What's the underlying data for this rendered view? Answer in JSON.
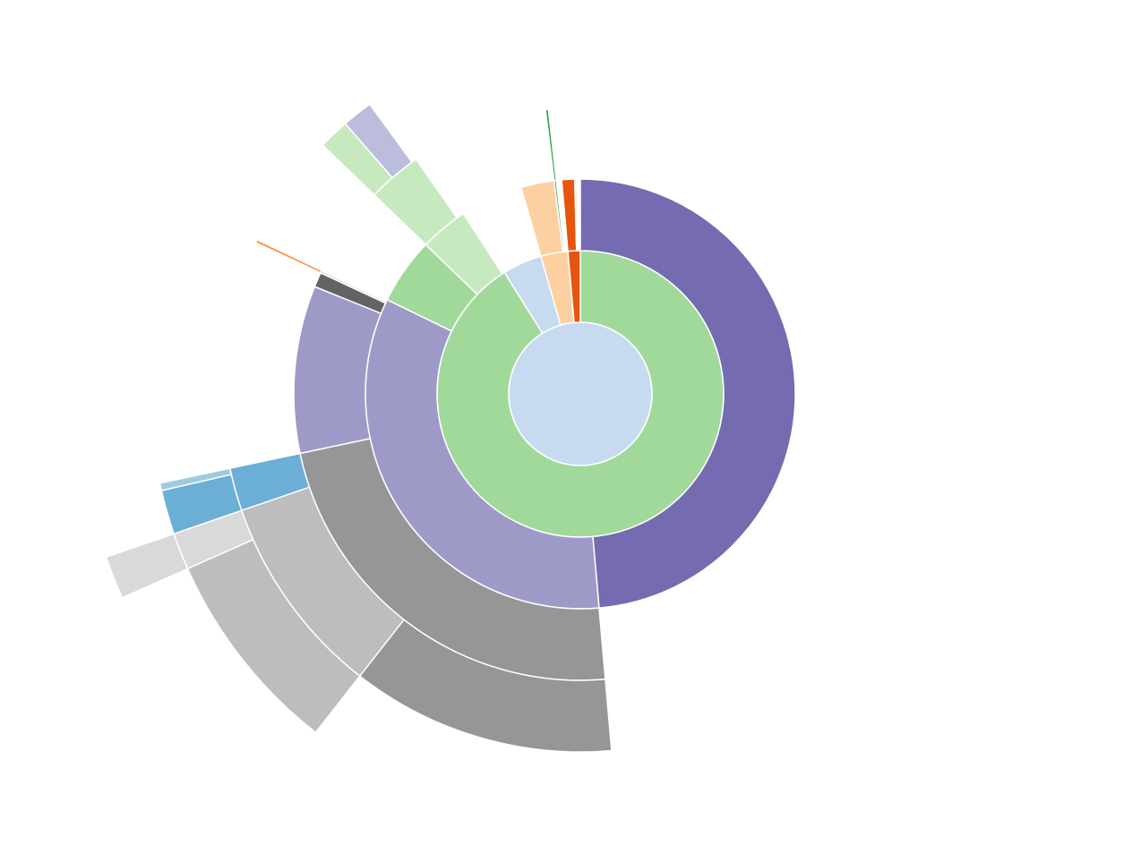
{
  "chart_data": {
    "type": "sunburst",
    "root": {
      "value": 360,
      "color": "#c6dbef",
      "children": [
        {
          "value": 328,
          "color": "#a1d99b",
          "children": [
            {
              "value": 175,
              "color": "#756bb1"
            },
            {
              "value": 121,
              "color": "#9e9ac8",
              "children": [
                {
                  "value": 83,
                  "color": "#969696",
                  "children": [
                    {
                      "value": 43,
                      "color": "#969696"
                    },
                    {
                      "value": 33,
                      "color": "#bdbdbd",
                      "children": [
                        {
                          "value": 28,
                          "color": "#bdbdbd"
                        },
                        {
                          "value": 5,
                          "color": "#d9d9d9",
                          "children": [
                            {
                              "value": 5,
                              "color": "#d9d9d9"
                            }
                          ]
                        }
                      ]
                    },
                    {
                      "value": 7,
                      "color": "#6baed6",
                      "children": [
                        {
                          "value": 6,
                          "color": "#6baed6"
                        },
                        {
                          "value": 1,
                          "color": "#9ecae1"
                        }
                      ]
                    }
                  ]
                },
                {
                  "value": 34,
                  "color": "#9e9ac8"
                },
                {
                  "value": 3,
                  "color": "#636363"
                },
                {
                  "value": 0.5,
                  "color": "#dadaeb",
                  "children": [
                    {
                      "value": 0.5,
                      "color": "#fd8d3c"
                    }
                  ]
                }
              ]
            },
            {
              "value": 18,
              "color": "#a1d99b"
            },
            {
              "value": 13,
              "color": "#c7e9c0",
              "children": [
                {
                  "value": 11,
                  "color": "#c7e9c0",
                  "children": [
                    {
                      "value": 5,
                      "color": "#c7e9c0"
                    },
                    {
                      "value": 5,
                      "color": "#bcbddc"
                    }
                  ]
                }
              ]
            }
          ]
        },
        {
          "value": 16,
          "color": "#c6dbef"
        },
        {
          "value": 11,
          "color": "#fdd0a2",
          "children": [
            {
              "value": 9,
              "color": "#fdd0a2"
            },
            {
              "value": 0.6,
              "color": "#31a354",
              "children": [
                {
                  "value": 0.6,
                  "color": "#31a354"
                }
              ]
            },
            {
              "value": 0.3,
              "color": "#fd8d3c",
              "children": [
                {
                  "value": 0.3,
                  "color": "#fdae6b"
                }
              ]
            }
          ]
        },
        {
          "value": 5,
          "color": "#e6550d",
          "children": [
            {
              "value": 3.5,
              "color": "#e6550d"
            },
            {
              "value": 0.5,
              "color": "#fdd0a2"
            }
          ]
        }
      ]
    }
  }
}
